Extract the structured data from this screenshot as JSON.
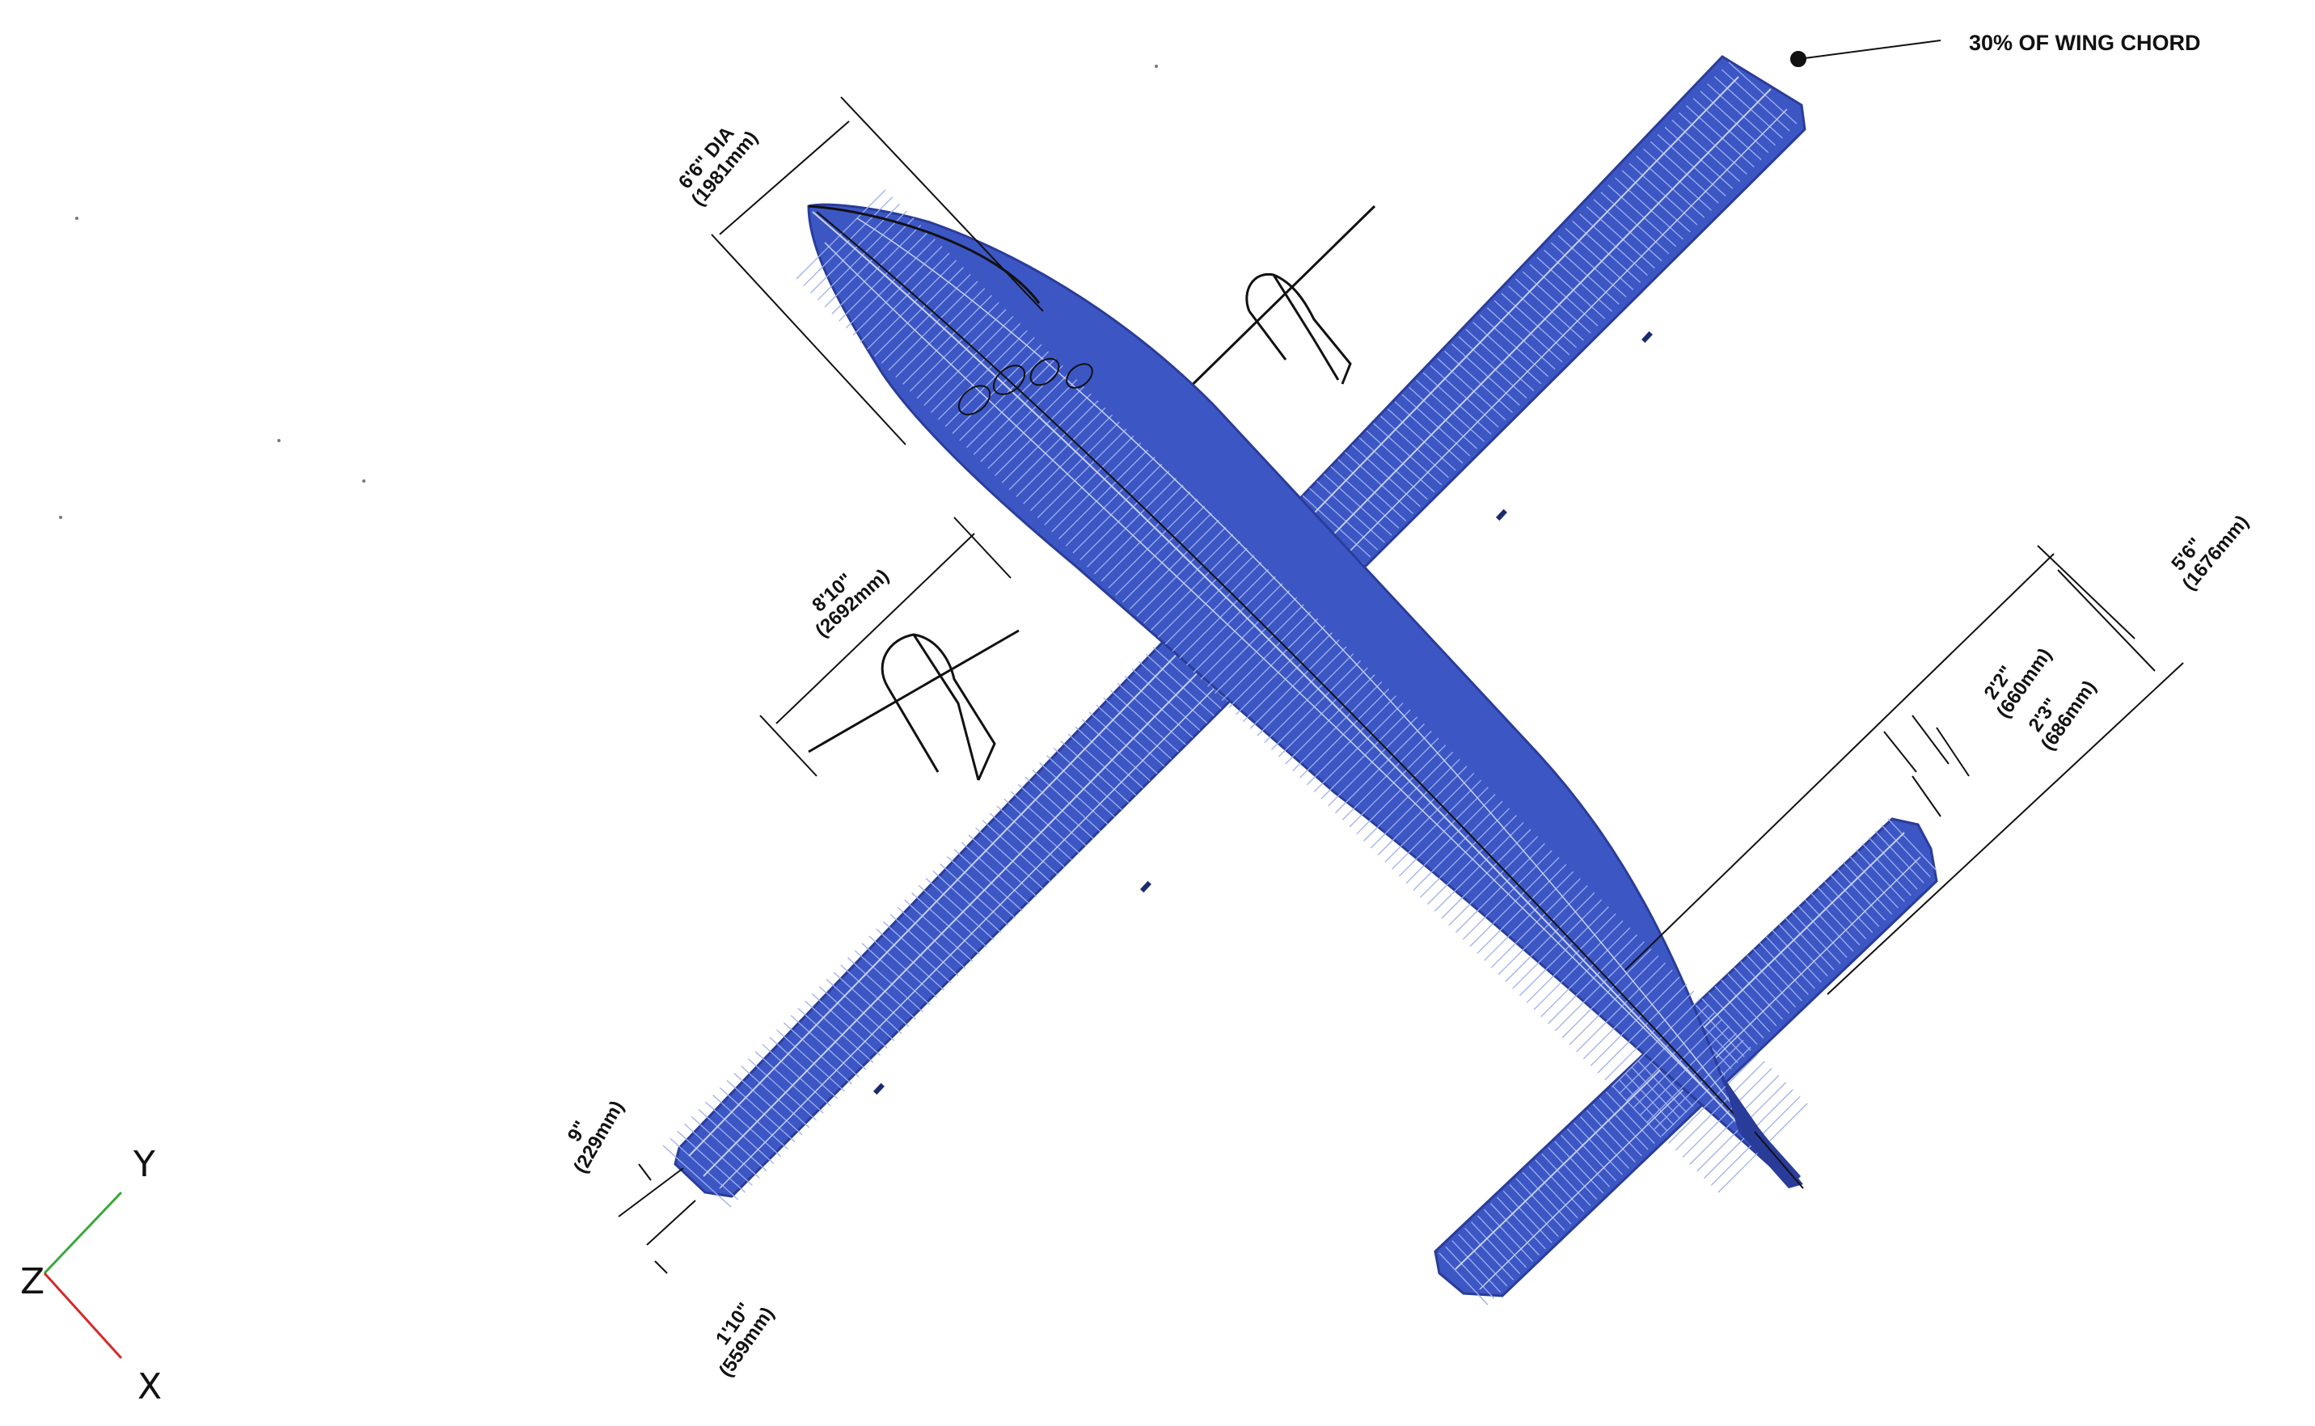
{
  "annotations": {
    "chord_note": "30% OF WING CHORD",
    "nose_dia": {
      "imperial": "6'6\" DIA",
      "metric": "(1981mm)"
    },
    "prop_span": {
      "imperial": "8'10\"",
      "metric": "(2692mm)"
    },
    "tail_span": {
      "imperial": "5'6\"",
      "metric": "(1676mm)"
    },
    "tail_seg1": {
      "imperial": "2'2\"",
      "metric": "(660mm)"
    },
    "tail_seg2": {
      "imperial": "2'3\"",
      "metric": "(686mm)"
    },
    "wingtip_a": {
      "imperial": "9\"",
      "metric": "(229mm)"
    },
    "wingtip_b": {
      "imperial": "1'10\"",
      "metric": "(559mm)"
    }
  },
  "axes": {
    "y": "Y",
    "z": "Z",
    "x": "X"
  },
  "colors": {
    "mesh_fill": "#3c57c4",
    "mesh_line": "#9fb0ee",
    "mesh_edge": "#2a3c9a",
    "ink": "#111111",
    "axis_y": "#3aa83a",
    "axis_x": "#d42a2a"
  }
}
